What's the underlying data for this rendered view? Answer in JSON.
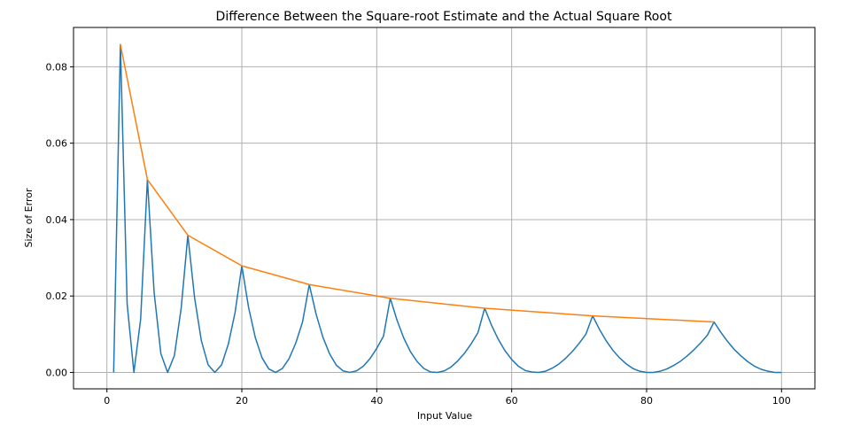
{
  "chart_data": {
    "type": "line",
    "title": "Difference Between the Square-root Estimate and the Actual Square Root",
    "xlabel": "Input Value",
    "ylabel": "Size of Error",
    "xlim": [
      -4.95,
      104.95
    ],
    "ylim": [
      -0.0043,
      0.0903
    ],
    "xticks": [
      0,
      20,
      40,
      60,
      80,
      100
    ],
    "yticks": [
      0.0,
      0.02,
      0.04,
      0.06,
      0.08
    ],
    "xtick_labels": [
      "0",
      "20",
      "40",
      "60",
      "80",
      "100"
    ],
    "ytick_labels": [
      "0.00",
      "0.02",
      "0.04",
      "0.06",
      "0.08"
    ],
    "grid": true,
    "series": [
      {
        "color": "#1f77b4",
        "x": [
          1,
          2,
          3,
          4,
          5,
          6,
          7,
          8,
          9,
          10,
          11,
          12,
          13,
          14,
          15,
          16,
          17,
          18,
          19,
          20,
          21,
          22,
          23,
          24,
          25,
          26,
          27,
          28,
          29,
          30,
          31,
          32,
          33,
          34,
          35,
          36,
          37,
          38,
          39,
          40,
          41,
          42,
          43,
          44,
          45,
          46,
          47,
          48,
          49,
          50,
          51,
          52,
          53,
          54,
          55,
          56,
          57,
          58,
          59,
          60,
          61,
          62,
          63,
          64,
          65,
          66,
          67,
          68,
          69,
          70,
          71,
          72,
          73,
          74,
          75,
          76,
          77,
          78,
          79,
          80,
          81,
          82,
          83,
          84,
          85,
          86,
          87,
          88,
          89,
          90,
          91,
          92,
          93,
          94,
          95,
          96,
          97,
          98,
          99,
          100
        ],
        "y": [
          0,
          0.0858,
          0.0179,
          0,
          0.0139,
          0.0505,
          0.0209,
          0.0049,
          0,
          0.0044,
          0.0167,
          0.0359,
          0.0195,
          0.0083,
          0.002,
          0,
          0.002,
          0.0074,
          0.0157,
          0.0279,
          0.017,
          0.0091,
          0.0038,
          0.0009,
          0,
          0.001,
          0.0036,
          0.0077,
          0.0132,
          0.023,
          0.0153,
          0.0093,
          0.0049,
          0.0019,
          0.0004,
          0,
          0.0004,
          0.0016,
          0.0036,
          0.0063,
          0.0095,
          0.0194,
          0.0137,
          0.009,
          0.0054,
          0.0028,
          0.001,
          0.0001,
          0,
          0.0004,
          0.0014,
          0.003,
          0.005,
          0.0075,
          0.0104,
          0.0168,
          0.0124,
          0.0087,
          0.0057,
          0.0034,
          0.0016,
          0.0005,
          0.0001,
          0,
          0.0003,
          0.0011,
          0.0022,
          0.0037,
          0.0055,
          0.0076,
          0.01,
          0.0148,
          0.0113,
          0.0083,
          0.0058,
          0.0038,
          0.0022,
          0.001,
          0.0003,
          0,
          0,
          0.0003,
          0.0009,
          0.0018,
          0.0029,
          0.0043,
          0.0059,
          0.0077,
          0.0097,
          0.0132,
          0.0105,
          0.0081,
          0.006,
          0.0043,
          0.0028,
          0.0016,
          0.0008,
          0.0003,
          0,
          0
        ]
      },
      {
        "color": "#ff7f0e",
        "x": [
          2,
          6,
          12,
          20,
          30,
          42,
          56,
          72,
          90
        ],
        "y": [
          0.0858,
          0.0505,
          0.0359,
          0.0279,
          0.023,
          0.0194,
          0.0168,
          0.0148,
          0.0132
        ]
      }
    ]
  }
}
